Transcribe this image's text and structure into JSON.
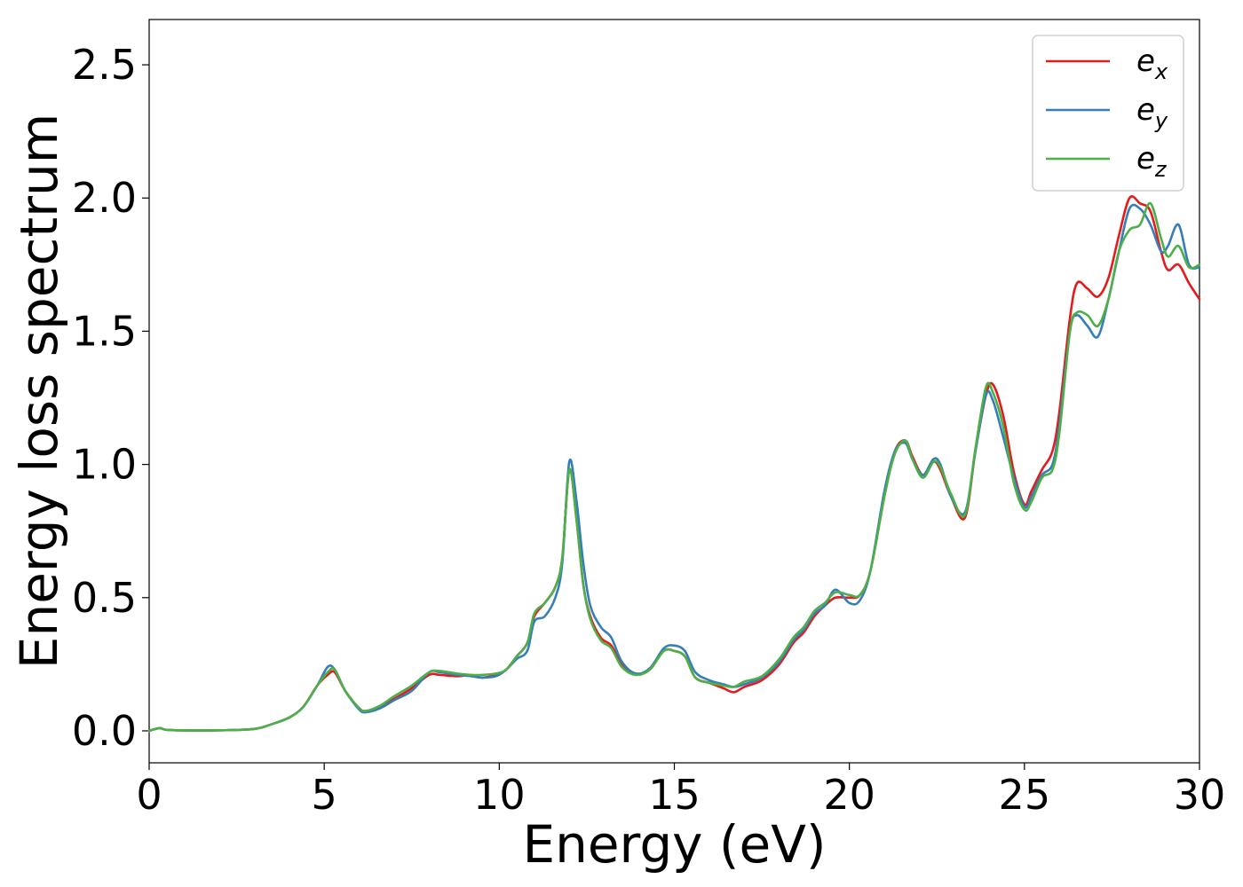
{
  "chart_data": {
    "type": "line",
    "title": "",
    "xlabel": "Energy (eV)",
    "ylabel": "Energy loss spectrum",
    "xlim": [
      0,
      30
    ],
    "ylim": [
      -0.12,
      2.67
    ],
    "xticks": [
      "0",
      "5",
      "10",
      "15",
      "20",
      "25",
      "30"
    ],
    "yticks": [
      "0.0",
      "0.5",
      "1.0",
      "1.5",
      "2.0",
      "2.5"
    ],
    "grid": false,
    "legend_position": "top-right",
    "series": [
      {
        "name": "e",
        "subscript": "x",
        "color": "#e41a1c",
        "points": [
          [
            0,
            0
          ],
          [
            0.3,
            0.01
          ],
          [
            0.6,
            0.003
          ],
          [
            2,
            0.002
          ],
          [
            3,
            0.007
          ],
          [
            3.5,
            0.025
          ],
          [
            4,
            0.05
          ],
          [
            4.4,
            0.09
          ],
          [
            4.8,
            0.17
          ],
          [
            5.1,
            0.21
          ],
          [
            5.3,
            0.22
          ],
          [
            5.6,
            0.15
          ],
          [
            6,
            0.085
          ],
          [
            6.2,
            0.075
          ],
          [
            6.6,
            0.09
          ],
          [
            7,
            0.12
          ],
          [
            7.5,
            0.16
          ],
          [
            8,
            0.21
          ],
          [
            8.3,
            0.21
          ],
          [
            8.8,
            0.205
          ],
          [
            9.2,
            0.21
          ],
          [
            9.5,
            0.2
          ],
          [
            9.9,
            0.21
          ],
          [
            10.2,
            0.23
          ],
          [
            10.5,
            0.28
          ],
          [
            10.8,
            0.33
          ],
          [
            11,
            0.43
          ],
          [
            11.3,
            0.48
          ],
          [
            11.6,
            0.54
          ],
          [
            11.8,
            0.65
          ],
          [
            12,
            0.98
          ],
          [
            12.2,
            0.8
          ],
          [
            12.4,
            0.55
          ],
          [
            12.6,
            0.43
          ],
          [
            12.9,
            0.35
          ],
          [
            13.2,
            0.32
          ],
          [
            13.5,
            0.25
          ],
          [
            13.9,
            0.215
          ],
          [
            14.3,
            0.23
          ],
          [
            14.7,
            0.3
          ],
          [
            15,
            0.3
          ],
          [
            15.3,
            0.28
          ],
          [
            15.6,
            0.2
          ],
          [
            16,
            0.18
          ],
          [
            16.4,
            0.16
          ],
          [
            16.7,
            0.145
          ],
          [
            17,
            0.165
          ],
          [
            17.5,
            0.19
          ],
          [
            18,
            0.25
          ],
          [
            18.4,
            0.33
          ],
          [
            18.7,
            0.37
          ],
          [
            19,
            0.43
          ],
          [
            19.3,
            0.47
          ],
          [
            19.6,
            0.5
          ],
          [
            20,
            0.5
          ],
          [
            20.3,
            0.51
          ],
          [
            20.6,
            0.6
          ],
          [
            21,
            0.88
          ],
          [
            21.3,
            1.05
          ],
          [
            21.6,
            1.09
          ],
          [
            21.8,
            1.03
          ],
          [
            22.1,
            0.96
          ],
          [
            22.4,
            1.01
          ],
          [
            22.6,
            0.98
          ],
          [
            22.9,
            0.88
          ],
          [
            23.3,
            0.8
          ],
          [
            23.6,
            1.05
          ],
          [
            23.9,
            1.26
          ],
          [
            24.1,
            1.3
          ],
          [
            24.4,
            1.18
          ],
          [
            24.7,
            0.97
          ],
          [
            25,
            0.85
          ],
          [
            25.2,
            0.9
          ],
          [
            25.5,
            0.98
          ],
          [
            25.8,
            1.05
          ],
          [
            26,
            1.2
          ],
          [
            26.3,
            1.55
          ],
          [
            26.5,
            1.68
          ],
          [
            26.8,
            1.66
          ],
          [
            27.1,
            1.63
          ],
          [
            27.4,
            1.7
          ],
          [
            27.7,
            1.86
          ],
          [
            28,
            2.0
          ],
          [
            28.3,
            1.98
          ],
          [
            28.6,
            1.95
          ],
          [
            28.9,
            1.8
          ],
          [
            29.1,
            1.73
          ],
          [
            29.4,
            1.75
          ],
          [
            29.7,
            1.68
          ],
          [
            30,
            1.62
          ]
        ]
      },
      {
        "name": "e",
        "subscript": "y",
        "color": "#377eb8",
        "points": [
          [
            0,
            0
          ],
          [
            0.3,
            0.01
          ],
          [
            0.6,
            0.003
          ],
          [
            2,
            0.002
          ],
          [
            3,
            0.007
          ],
          [
            3.5,
            0.025
          ],
          [
            4,
            0.05
          ],
          [
            4.4,
            0.09
          ],
          [
            4.8,
            0.17
          ],
          [
            5.1,
            0.24
          ],
          [
            5.3,
            0.23
          ],
          [
            5.6,
            0.15
          ],
          [
            6,
            0.08
          ],
          [
            6.2,
            0.07
          ],
          [
            6.6,
            0.085
          ],
          [
            7,
            0.115
          ],
          [
            7.5,
            0.15
          ],
          [
            8,
            0.22
          ],
          [
            8.3,
            0.22
          ],
          [
            8.8,
            0.21
          ],
          [
            9.2,
            0.205
          ],
          [
            9.5,
            0.2
          ],
          [
            9.9,
            0.205
          ],
          [
            10.2,
            0.23
          ],
          [
            10.5,
            0.27
          ],
          [
            10.8,
            0.3
          ],
          [
            11,
            0.41
          ],
          [
            11.3,
            0.43
          ],
          [
            11.6,
            0.5
          ],
          [
            11.8,
            0.63
          ],
          [
            12,
            1.01
          ],
          [
            12.2,
            0.87
          ],
          [
            12.4,
            0.63
          ],
          [
            12.6,
            0.47
          ],
          [
            12.9,
            0.39
          ],
          [
            13.2,
            0.35
          ],
          [
            13.5,
            0.26
          ],
          [
            13.9,
            0.215
          ],
          [
            14.3,
            0.235
          ],
          [
            14.7,
            0.31
          ],
          [
            15,
            0.32
          ],
          [
            15.3,
            0.3
          ],
          [
            15.6,
            0.22
          ],
          [
            16,
            0.19
          ],
          [
            16.4,
            0.175
          ],
          [
            16.7,
            0.165
          ],
          [
            17,
            0.175
          ],
          [
            17.5,
            0.2
          ],
          [
            18,
            0.26
          ],
          [
            18.4,
            0.34
          ],
          [
            18.7,
            0.38
          ],
          [
            19,
            0.44
          ],
          [
            19.3,
            0.47
          ],
          [
            19.6,
            0.53
          ],
          [
            20,
            0.48
          ],
          [
            20.3,
            0.49
          ],
          [
            20.6,
            0.6
          ],
          [
            21,
            0.9
          ],
          [
            21.3,
            1.05
          ],
          [
            21.6,
            1.08
          ],
          [
            21.8,
            1.02
          ],
          [
            22.1,
            0.96
          ],
          [
            22.4,
            1.02
          ],
          [
            22.6,
            1.0
          ],
          [
            22.9,
            0.88
          ],
          [
            23.3,
            0.82
          ],
          [
            23.6,
            1.05
          ],
          [
            23.9,
            1.26
          ],
          [
            24.1,
            1.24
          ],
          [
            24.4,
            1.1
          ],
          [
            24.7,
            0.95
          ],
          [
            25,
            0.84
          ],
          [
            25.2,
            0.88
          ],
          [
            25.5,
            0.96
          ],
          [
            25.8,
            1.0
          ],
          [
            26,
            1.15
          ],
          [
            26.3,
            1.5
          ],
          [
            26.5,
            1.56
          ],
          [
            26.8,
            1.52
          ],
          [
            27.1,
            1.48
          ],
          [
            27.4,
            1.62
          ],
          [
            27.7,
            1.8
          ],
          [
            28,
            1.96
          ],
          [
            28.3,
            1.96
          ],
          [
            28.6,
            1.9
          ],
          [
            28.9,
            1.8
          ],
          [
            29.1,
            1.82
          ],
          [
            29.4,
            1.9
          ],
          [
            29.7,
            1.75
          ],
          [
            30,
            1.74
          ]
        ]
      },
      {
        "name": "e",
        "subscript": "z",
        "color": "#4daf4a",
        "points": [
          [
            0,
            0
          ],
          [
            0.3,
            0.01
          ],
          [
            0.6,
            0.003
          ],
          [
            2,
            0.002
          ],
          [
            3,
            0.007
          ],
          [
            3.5,
            0.025
          ],
          [
            4,
            0.05
          ],
          [
            4.4,
            0.09
          ],
          [
            4.8,
            0.17
          ],
          [
            5.1,
            0.22
          ],
          [
            5.3,
            0.23
          ],
          [
            5.6,
            0.15
          ],
          [
            6,
            0.085
          ],
          [
            6.2,
            0.075
          ],
          [
            6.6,
            0.095
          ],
          [
            7,
            0.13
          ],
          [
            7.5,
            0.17
          ],
          [
            8,
            0.22
          ],
          [
            8.3,
            0.225
          ],
          [
            8.8,
            0.215
          ],
          [
            9.2,
            0.21
          ],
          [
            9.5,
            0.21
          ],
          [
            9.9,
            0.215
          ],
          [
            10.2,
            0.23
          ],
          [
            10.5,
            0.28
          ],
          [
            10.8,
            0.33
          ],
          [
            11,
            0.44
          ],
          [
            11.3,
            0.48
          ],
          [
            11.6,
            0.54
          ],
          [
            11.8,
            0.65
          ],
          [
            12,
            0.98
          ],
          [
            12.2,
            0.8
          ],
          [
            12.4,
            0.55
          ],
          [
            12.6,
            0.42
          ],
          [
            12.9,
            0.34
          ],
          [
            13.2,
            0.31
          ],
          [
            13.5,
            0.24
          ],
          [
            13.9,
            0.21
          ],
          [
            14.3,
            0.23
          ],
          [
            14.7,
            0.3
          ],
          [
            15,
            0.3
          ],
          [
            15.3,
            0.28
          ],
          [
            15.6,
            0.2
          ],
          [
            16,
            0.18
          ],
          [
            16.4,
            0.17
          ],
          [
            16.7,
            0.165
          ],
          [
            17,
            0.185
          ],
          [
            17.5,
            0.205
          ],
          [
            18,
            0.27
          ],
          [
            18.4,
            0.35
          ],
          [
            18.7,
            0.39
          ],
          [
            19,
            0.45
          ],
          [
            19.3,
            0.48
          ],
          [
            19.6,
            0.52
          ],
          [
            20,
            0.51
          ],
          [
            20.3,
            0.51
          ],
          [
            20.6,
            0.6
          ],
          [
            21,
            0.88
          ],
          [
            21.3,
            1.04
          ],
          [
            21.6,
            1.09
          ],
          [
            21.8,
            1.02
          ],
          [
            22.1,
            0.95
          ],
          [
            22.4,
            1.01
          ],
          [
            22.6,
            0.99
          ],
          [
            22.9,
            0.89
          ],
          [
            23.3,
            0.81
          ],
          [
            23.6,
            1.06
          ],
          [
            23.9,
            1.29
          ],
          [
            24.1,
            1.27
          ],
          [
            24.4,
            1.14
          ],
          [
            24.7,
            0.93
          ],
          [
            25,
            0.83
          ],
          [
            25.2,
            0.86
          ],
          [
            25.5,
            0.95
          ],
          [
            25.8,
            0.98
          ],
          [
            26,
            1.12
          ],
          [
            26.3,
            1.5
          ],
          [
            26.5,
            1.57
          ],
          [
            26.8,
            1.56
          ],
          [
            27.1,
            1.52
          ],
          [
            27.4,
            1.62
          ],
          [
            27.7,
            1.8
          ],
          [
            28,
            1.88
          ],
          [
            28.3,
            1.9
          ],
          [
            28.6,
            1.98
          ],
          [
            28.9,
            1.85
          ],
          [
            29.1,
            1.78
          ],
          [
            29.4,
            1.82
          ],
          [
            29.7,
            1.74
          ],
          [
            30,
            1.75
          ]
        ]
      }
    ]
  }
}
